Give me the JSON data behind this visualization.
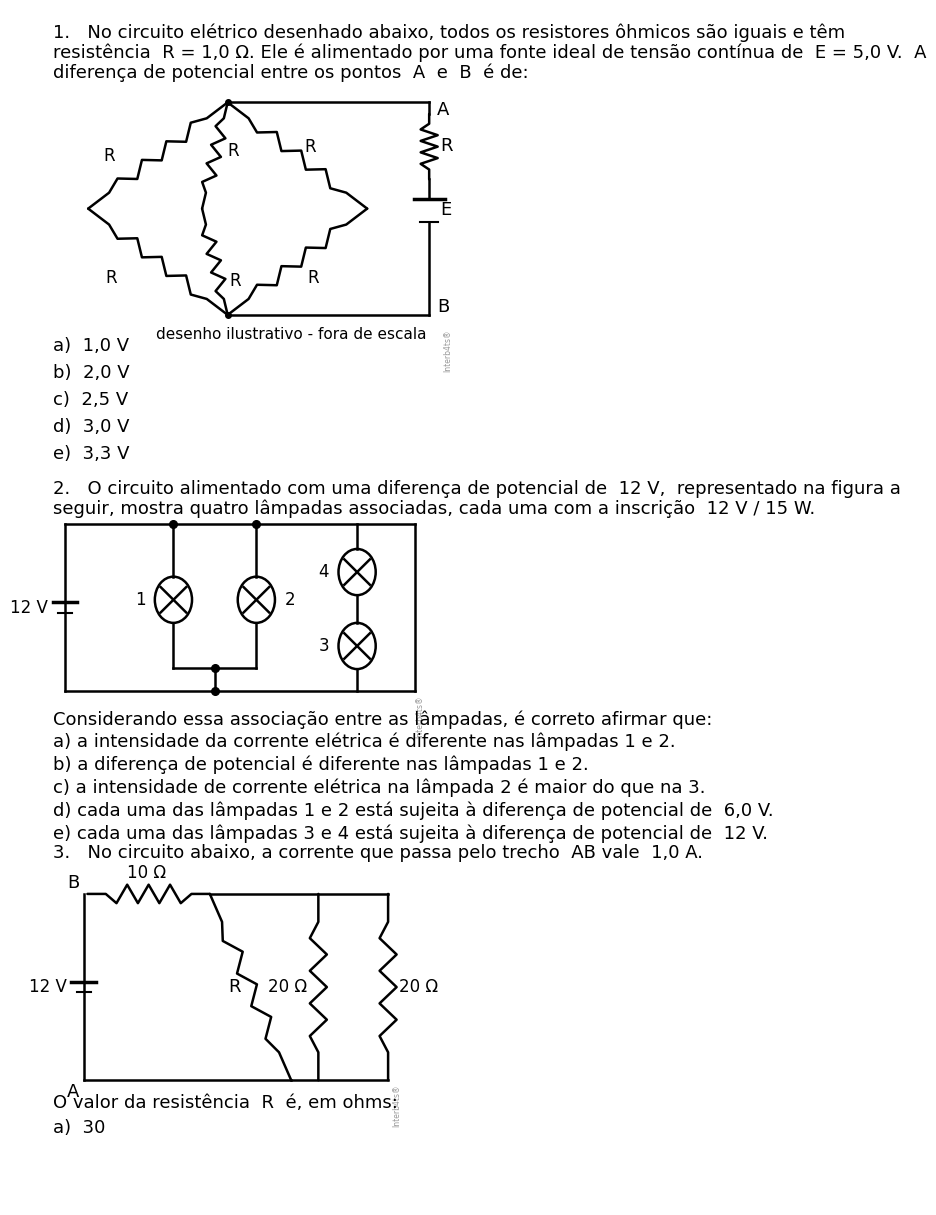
{
  "bg": "#ffffff",
  "fg": "#000000",
  "lw": 1.8,
  "fs": 13.0,
  "q1_line1": "1.   No circuito elétrico desenhado abaixo, todos os resistores ôhmicos são iguais e têm",
  "q1_line2": "resistência  R = 1,0 Ω. Ele é alimentado por uma fonte ideal de tensão contínua de  E = 5,0 V.  A",
  "q1_line3": "diferença de potencial entre os pontos  A  e  B  é de:",
  "q1_opts": [
    "a)  1,0 V",
    "b)  2,0 V",
    "c)  2,5 V",
    "d)  3,0 V",
    "e)  3,3 V"
  ],
  "desenho": "desenho ilustrativo - fora de escala",
  "q2_line1": "2.   O circuito alimentado com uma diferença de potencial de  12 V,  representado na figura a",
  "q2_line2": "seguir, mostra quatro lâmpadas associadas, cada uma com a inscrição  12 V / 15 W.",
  "q2_consider": "Considerando essa associação entre as lâmpadas, é correto afirmar que:",
  "q2_opts": [
    "a) a intensidade da corrente elétrica é diferente nas lâmpadas 1 e 2.",
    "b) a diferença de potencial é diferente nas lâmpadas 1 e 2.",
    "c) a intensidade de corrente elétrica na lâmpada 2 é maior do que na 3.",
    "d) cada uma das lâmpadas 1 e 2 está sujeita à diferença de potencial de  6,0 V.",
    "e) cada uma das lâmpadas 3 e 4 está sujeita à diferença de potencial de  12 V."
  ],
  "q3_line1": "3.   No circuito abaixo, a corrente que passa pelo trecho  AB vale  1,0 A.",
  "q3_line2": "O valor da resistência  R  é, em ohms:",
  "q3_opt": "a)  30"
}
